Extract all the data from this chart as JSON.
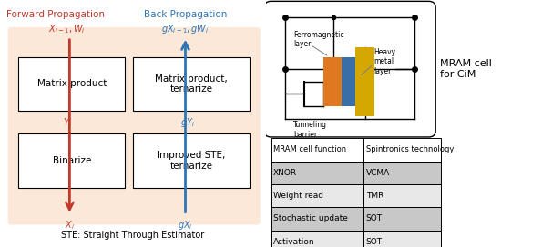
{
  "left_bg_color": "#fce8d8",
  "box_facecolor": "white",
  "box_edgecolor": "black",
  "forward_color": "#c0392b",
  "back_color": "#2e75b6",
  "title_forward": "Forward Propagation",
  "title_back": "Back Propagation",
  "box1_label": "Matrix product",
  "box2_label": "Matrix product,\nternarize",
  "box3_label": "Binarize",
  "box4_label": "Improved STE,\nternarize",
  "footer_text": "STE: Straight Through Estimator",
  "table_headers": [
    "MRAM cell function",
    "Spintronics technology"
  ],
  "table_rows": [
    [
      "XNOR",
      "VCMA"
    ],
    [
      "Weight read",
      "TMR"
    ],
    [
      "Stochastic update",
      "SOT"
    ],
    [
      "Activation",
      "SOT"
    ]
  ],
  "mram_label": "MRAM cell\nfor CiM",
  "ferromagnetic_label": "Ferromagnetic\nlayer",
  "tunneling_label": "Tunneling\nbarrier",
  "heavy_metal_label": "Heavy\nmetal\nlayer",
  "orange_color": "#e07820",
  "blue_color": "#3a6ea8",
  "yellow_color": "#d4a800",
  "table_header_bg": "#ffffff",
  "table_row_bg1": "#c8c8c8",
  "table_row_bg2": "#e8e8e8",
  "fig_width": 5.95,
  "fig_height": 2.72,
  "dpi": 100
}
